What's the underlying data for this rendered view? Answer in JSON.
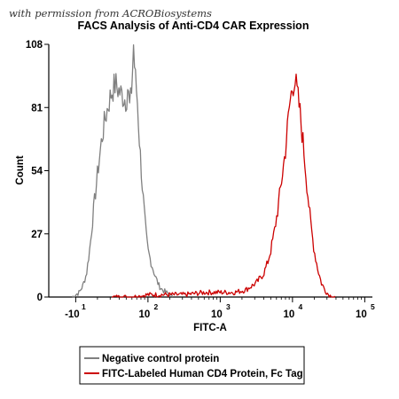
{
  "watermark": "with permission from ACROBiosystems",
  "chart_data": {
    "type": "line",
    "title": "FACS Analysis of Anti-CD4 CAR Expression",
    "xlabel": "FITC-A",
    "ylabel": "Count",
    "xscale": "biexponential (log)",
    "ylim": [
      0,
      108
    ],
    "y_ticks": [
      0,
      27,
      54,
      81,
      108
    ],
    "x_ticks": [
      {
        "base": "-10",
        "exp": "1"
      },
      {
        "base": "10",
        "exp": "2"
      },
      {
        "base": "10",
        "exp": "3"
      },
      {
        "base": "10",
        "exp": "4"
      },
      {
        "base": "10",
        "exp": "5"
      }
    ],
    "grid": false,
    "legend_position": "bottom",
    "series": [
      {
        "name": "Negative control protein",
        "color": "#808080",
        "x_log": [
          0.95,
          1.0,
          1.05,
          1.1,
          1.15,
          1.2,
          1.25,
          1.3,
          1.35,
          1.4,
          1.45,
          1.5,
          1.55,
          1.6,
          1.65,
          1.7,
          1.72,
          1.75,
          1.78,
          1.8,
          1.82,
          1.85,
          1.88,
          1.9,
          1.92,
          1.94,
          1.96,
          1.98,
          2.0,
          2.05,
          2.1,
          2.15,
          2.2,
          2.25,
          2.3,
          2.35
        ],
        "values": [
          0,
          1,
          2,
          5,
          10,
          22,
          38,
          52,
          65,
          75,
          82,
          88,
          91,
          88,
          86,
          84,
          90,
          80,
          92,
          108,
          95,
          86,
          68,
          58,
          48,
          40,
          32,
          25,
          20,
          14,
          9,
          5,
          3,
          2,
          1,
          0
        ]
      },
      {
        "name": "FITC-Labeled Human CD4 Protein, Fc Tag",
        "color": "#cc0000",
        "x_log": [
          1.5,
          1.8,
          2.0,
          2.2,
          2.5,
          2.8,
          3.0,
          3.2,
          3.35,
          3.5,
          3.6,
          3.65,
          3.7,
          3.75,
          3.8,
          3.85,
          3.9,
          3.93,
          3.96,
          4.0,
          4.03,
          4.06,
          4.1,
          4.15,
          4.2,
          4.25,
          4.3,
          4.35,
          4.4,
          4.45,
          4.5,
          4.55,
          4.6
        ],
        "values": [
          0,
          0,
          1,
          1,
          1,
          2,
          2,
          2,
          3,
          6,
          10,
          14,
          20,
          28,
          38,
          50,
          62,
          72,
          82,
          90,
          94,
          88,
          80,
          65,
          48,
          32,
          20,
          12,
          6,
          3,
          1,
          0,
          0
        ]
      }
    ]
  }
}
